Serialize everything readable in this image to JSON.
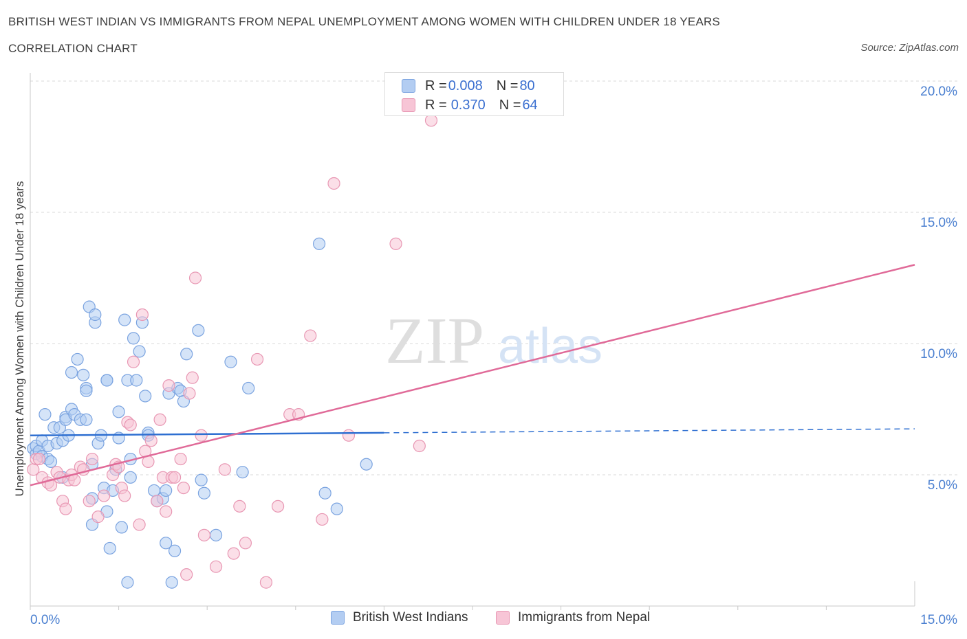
{
  "header": {
    "title": "BRITISH WEST INDIAN VS IMMIGRANTS FROM NEPAL UNEMPLOYMENT AMONG WOMEN WITH CHILDREN UNDER 18 YEARS",
    "subtitle": "CORRELATION CHART",
    "source": "Source: ZipAtlas.com"
  },
  "watermark": {
    "zip": "ZIP",
    "atlas": "atlas"
  },
  "stats": [
    {
      "r_label": "R = ",
      "r_value": "0.008",
      "n_label": "N = ",
      "n_value": "80"
    },
    {
      "r_label": "R = ",
      "r_value": "0.370",
      "n_label": "N = ",
      "n_value": "64"
    }
  ],
  "colors": {
    "blue_fill": "#b3cdf2",
    "blue_stroke": "#7aa3e0",
    "blue_line": "#2e6fd1",
    "pink_fill": "#f7c5d6",
    "pink_stroke": "#e897b3",
    "pink_line": "#e06a98",
    "grid": "#d9d9d9",
    "tick_text": "#4a7fd0"
  },
  "chart_data": {
    "type": "scatter",
    "title": "BRITISH WEST INDIAN VS IMMIGRANTS FROM NEPAL UNEMPLOYMENT AMONG WOMEN WITH CHILDREN UNDER 18 YEARS",
    "subtitle": "CORRELATION CHART",
    "ylabel": "Unemployment Among Women with Children Under 18 years",
    "xlabel": "",
    "xlim": [
      0,
      15
    ],
    "ylim": [
      0,
      20
    ],
    "x_tick_labels": [
      "0.0%",
      "15.0%"
    ],
    "y_ticks": [
      5,
      10,
      15,
      20
    ],
    "y_tick_labels": [
      "5.0%",
      "10.0%",
      "15.0%",
      "20.0%"
    ],
    "grid": true,
    "legend_position": "bottom-center",
    "series": [
      {
        "name": "British West Indians",
        "color": "#b3cdf2",
        "trend": {
          "x": [
            0,
            6.0
          ],
          "y": [
            6.5,
            6.6
          ],
          "dashed_extension_to": [
            15.0,
            6.75
          ]
        },
        "points": [
          [
            0.05,
            6.0
          ],
          [
            0.1,
            5.8
          ],
          [
            0.1,
            6.1
          ],
          [
            0.15,
            5.9
          ],
          [
            0.2,
            6.3
          ],
          [
            0.2,
            5.7
          ],
          [
            0.25,
            7.3
          ],
          [
            0.3,
            6.1
          ],
          [
            0.3,
            5.6
          ],
          [
            0.35,
            5.5
          ],
          [
            0.4,
            6.8
          ],
          [
            0.45,
            6.2
          ],
          [
            0.5,
            6.8
          ],
          [
            0.55,
            4.9
          ],
          [
            0.55,
            6.3
          ],
          [
            0.6,
            7.2
          ],
          [
            0.6,
            7.1
          ],
          [
            0.65,
            6.5
          ],
          [
            0.7,
            8.9
          ],
          [
            0.7,
            7.5
          ],
          [
            0.75,
            7.3
          ],
          [
            0.8,
            9.4
          ],
          [
            0.85,
            7.1
          ],
          [
            0.9,
            8.8
          ],
          [
            0.95,
            8.3
          ],
          [
            0.95,
            8.2
          ],
          [
            0.95,
            7.1
          ],
          [
            1.0,
            11.4
          ],
          [
            1.05,
            5.4
          ],
          [
            1.05,
            4.1
          ],
          [
            1.05,
            3.1
          ],
          [
            1.1,
            10.8
          ],
          [
            1.1,
            11.1
          ],
          [
            1.15,
            6.2
          ],
          [
            1.2,
            6.5
          ],
          [
            1.25,
            4.5
          ],
          [
            1.3,
            8.6
          ],
          [
            1.3,
            8.6
          ],
          [
            1.3,
            3.6
          ],
          [
            1.35,
            2.2
          ],
          [
            1.4,
            4.4
          ],
          [
            1.45,
            5.2
          ],
          [
            1.5,
            7.4
          ],
          [
            1.5,
            6.4
          ],
          [
            1.55,
            3.0
          ],
          [
            1.6,
            10.9
          ],
          [
            1.65,
            8.6
          ],
          [
            1.65,
            0.9
          ],
          [
            1.7,
            5.6
          ],
          [
            1.7,
            4.9
          ],
          [
            1.75,
            10.2
          ],
          [
            1.8,
            8.6
          ],
          [
            1.85,
            9.7
          ],
          [
            1.9,
            10.8
          ],
          [
            1.95,
            8.0
          ],
          [
            2.0,
            6.6
          ],
          [
            2.0,
            6.5
          ],
          [
            2.1,
            4.4
          ],
          [
            2.15,
            4.0
          ],
          [
            2.25,
            4.1
          ],
          [
            2.3,
            4.4
          ],
          [
            2.3,
            2.4
          ],
          [
            2.35,
            8.1
          ],
          [
            2.4,
            0.9
          ],
          [
            2.45,
            2.1
          ],
          [
            2.5,
            8.3
          ],
          [
            2.55,
            8.2
          ],
          [
            2.6,
            7.8
          ],
          [
            2.65,
            9.6
          ],
          [
            2.85,
            10.5
          ],
          [
            2.9,
            4.8
          ],
          [
            2.95,
            4.3
          ],
          [
            3.15,
            2.7
          ],
          [
            3.4,
            9.3
          ],
          [
            3.6,
            5.1
          ],
          [
            3.7,
            8.3
          ],
          [
            4.9,
            13.8
          ],
          [
            5.0,
            4.3
          ],
          [
            5.2,
            3.7
          ],
          [
            5.7,
            5.4
          ]
        ]
      },
      {
        "name": "Immigrants from Nepal",
        "color": "#f7c5d6",
        "trend": {
          "x": [
            0,
            15.0
          ],
          "y": [
            4.6,
            13.0
          ]
        },
        "points": [
          [
            0.05,
            5.2
          ],
          [
            0.1,
            5.6
          ],
          [
            0.15,
            5.6
          ],
          [
            0.2,
            4.9
          ],
          [
            0.3,
            4.7
          ],
          [
            0.35,
            4.6
          ],
          [
            0.45,
            5.1
          ],
          [
            0.5,
            4.9
          ],
          [
            0.55,
            4.0
          ],
          [
            0.6,
            3.7
          ],
          [
            0.65,
            4.8
          ],
          [
            0.7,
            5.0
          ],
          [
            0.75,
            4.8
          ],
          [
            0.85,
            5.3
          ],
          [
            0.9,
            5.2
          ],
          [
            1.0,
            4.0
          ],
          [
            1.05,
            5.6
          ],
          [
            1.15,
            3.4
          ],
          [
            1.25,
            4.2
          ],
          [
            1.4,
            5.0
          ],
          [
            1.45,
            5.4
          ],
          [
            1.5,
            5.3
          ],
          [
            1.55,
            4.5
          ],
          [
            1.6,
            4.2
          ],
          [
            1.65,
            7.0
          ],
          [
            1.7,
            6.9
          ],
          [
            1.75,
            9.3
          ],
          [
            1.85,
            3.1
          ],
          [
            1.9,
            11.1
          ],
          [
            1.95,
            5.9
          ],
          [
            2.0,
            5.5
          ],
          [
            2.05,
            6.3
          ],
          [
            2.15,
            4.0
          ],
          [
            2.2,
            7.1
          ],
          [
            2.25,
            4.9
          ],
          [
            2.3,
            3.6
          ],
          [
            2.35,
            8.4
          ],
          [
            2.4,
            4.9
          ],
          [
            2.45,
            4.9
          ],
          [
            2.55,
            5.6
          ],
          [
            2.6,
            4.5
          ],
          [
            2.65,
            1.2
          ],
          [
            2.7,
            8.1
          ],
          [
            2.75,
            8.7
          ],
          [
            2.8,
            12.5
          ],
          [
            2.9,
            6.5
          ],
          [
            2.95,
            2.7
          ],
          [
            3.15,
            1.5
          ],
          [
            3.3,
            5.2
          ],
          [
            3.45,
            2.0
          ],
          [
            3.55,
            3.8
          ],
          [
            3.65,
            2.4
          ],
          [
            3.85,
            9.4
          ],
          [
            4.0,
            0.9
          ],
          [
            4.2,
            3.8
          ],
          [
            4.4,
            7.3
          ],
          [
            4.55,
            7.3
          ],
          [
            4.75,
            10.3
          ],
          [
            4.95,
            3.3
          ],
          [
            5.15,
            16.1
          ],
          [
            5.4,
            6.5
          ],
          [
            6.2,
            13.8
          ],
          [
            6.6,
            6.1
          ],
          [
            6.8,
            18.5
          ]
        ]
      }
    ]
  },
  "legend": [
    {
      "label": "British West Indians"
    },
    {
      "label": "Immigrants from Nepal"
    }
  ]
}
